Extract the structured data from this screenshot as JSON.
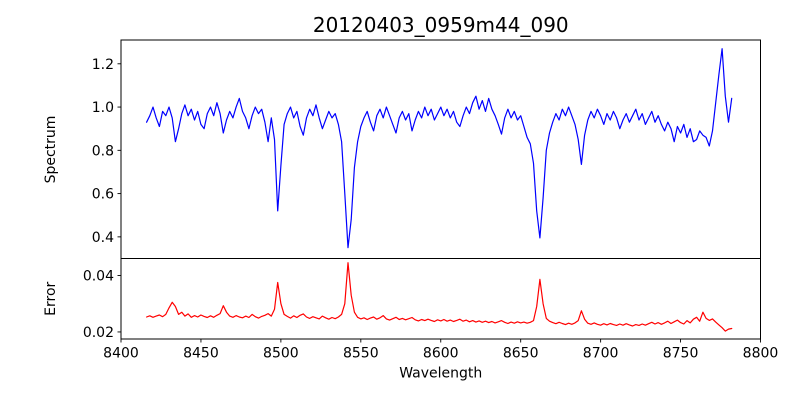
{
  "figure": {
    "background_color": "#ffffff",
    "axis_color": "#000000",
    "title": "20120403_0959m44_090"
  },
  "chart_data": {
    "type": "line",
    "title": "20120403_0959m44_090",
    "xlabel": "Wavelength",
    "xlim": [
      8400,
      8800
    ],
    "xticks": [
      8400,
      8450,
      8500,
      8550,
      8600,
      8650,
      8700,
      8750,
      8800
    ],
    "grid": false,
    "legend": "none",
    "layout": "two stacked panels sharing x axis, no vertical gap",
    "panels": [
      {
        "name": "spectrum",
        "ylabel": "Spectrum",
        "ylim": [
          0.3,
          1.31
        ],
        "yticks": [
          0.4,
          0.6,
          0.8,
          1.0,
          1.2
        ],
        "ytick_labels": [
          "0.4",
          "0.6",
          "0.8",
          "1.0",
          "1.2"
        ],
        "color": "#0000ff",
        "features": "continuum near 1.0 with noise; Ca II absorption lines at 8498 (0.52), 8542 (0.35), 8662 (0.40); weaker lines 8434, 8464, 8492, 8514, 8638, 8688 (0.74); emission spike to 1.27 near 8776",
        "x_grid": {
          "start": 8416,
          "step": 2,
          "count": 184
        },
        "y": [
          0.93,
          0.96,
          1.0,
          0.95,
          0.91,
          0.98,
          0.96,
          1.0,
          0.95,
          0.84,
          0.9,
          0.97,
          1.01,
          0.96,
          0.99,
          0.94,
          0.98,
          0.92,
          0.9,
          0.97,
          1.0,
          0.96,
          1.02,
          0.97,
          0.88,
          0.94,
          0.98,
          0.95,
          1.0,
          1.04,
          0.98,
          0.95,
          0.9,
          0.96,
          1.0,
          0.97,
          0.99,
          0.93,
          0.84,
          0.95,
          0.85,
          0.52,
          0.73,
          0.92,
          0.97,
          1.0,
          0.95,
          0.98,
          0.91,
          0.87,
          0.95,
          0.99,
          0.96,
          1.01,
          0.95,
          0.9,
          0.94,
          0.98,
          0.95,
          0.97,
          0.92,
          0.84,
          0.6,
          0.35,
          0.48,
          0.72,
          0.84,
          0.91,
          0.95,
          0.98,
          0.93,
          0.89,
          0.96,
          0.99,
          0.95,
          1.0,
          0.96,
          0.92,
          0.88,
          0.95,
          0.98,
          0.94,
          0.97,
          0.89,
          0.94,
          0.98,
          0.95,
          1.0,
          0.96,
          0.99,
          0.94,
          0.97,
          1.0,
          0.96,
          0.99,
          0.95,
          0.98,
          0.93,
          0.91,
          0.96,
          1.0,
          0.97,
          1.02,
          1.05,
          0.99,
          1.03,
          0.98,
          1.04,
          0.99,
          0.96,
          0.92,
          0.875,
          0.95,
          0.99,
          0.95,
          0.98,
          0.94,
          0.96,
          0.91,
          0.86,
          0.83,
          0.74,
          0.52,
          0.395,
          0.58,
          0.8,
          0.88,
          0.93,
          0.97,
          0.94,
          0.99,
          0.96,
          1.0,
          0.96,
          0.92,
          0.85,
          0.735,
          0.87,
          0.94,
          0.98,
          0.95,
          0.99,
          0.96,
          0.92,
          0.97,
          0.94,
          0.98,
          0.95,
          0.9,
          0.94,
          0.97,
          0.93,
          0.96,
          0.99,
          0.94,
          0.97,
          0.92,
          0.95,
          0.98,
          0.93,
          0.96,
          0.92,
          0.89,
          0.93,
          0.9,
          0.84,
          0.91,
          0.88,
          0.92,
          0.86,
          0.9,
          0.84,
          0.85,
          0.89,
          0.87,
          0.86,
          0.82,
          0.89,
          1.02,
          1.15,
          1.27,
          1.05,
          0.93,
          1.04
        ]
      },
      {
        "name": "error",
        "ylabel": "Error",
        "ylim": [
          0.0175,
          0.046
        ],
        "yticks": [
          0.02,
          0.04
        ],
        "ytick_labels": [
          "0.02",
          "0.04"
        ],
        "color": "#ff0000",
        "features": "baseline ~0.025 slowly declining to ~0.022; peaks at 8432 (0.030), 8464 (0.029), 8498 (0.037), 8542 (0.044), 8662 (0.039), 8688 (0.027); dip to ~0.020 at right end",
        "x_grid": {
          "start": 8416,
          "step": 2,
          "count": 184
        },
        "y": [
          0.0253,
          0.0257,
          0.0252,
          0.0256,
          0.026,
          0.0254,
          0.0262,
          0.0285,
          0.0305,
          0.029,
          0.0262,
          0.027,
          0.0256,
          0.0264,
          0.0252,
          0.0258,
          0.0253,
          0.026,
          0.0255,
          0.0251,
          0.0257,
          0.0252,
          0.0259,
          0.0265,
          0.0293,
          0.027,
          0.0256,
          0.0252,
          0.0258,
          0.0253,
          0.025,
          0.0256,
          0.0251,
          0.0262,
          0.0254,
          0.0249,
          0.0255,
          0.0259,
          0.0265,
          0.0256,
          0.028,
          0.0375,
          0.03,
          0.0262,
          0.0255,
          0.0249,
          0.0257,
          0.0251,
          0.0259,
          0.0264,
          0.0253,
          0.0248,
          0.0254,
          0.025,
          0.0246,
          0.0256,
          0.025,
          0.0245,
          0.0251,
          0.0247,
          0.0253,
          0.0262,
          0.03,
          0.0445,
          0.033,
          0.027,
          0.0252,
          0.0246,
          0.025,
          0.0244,
          0.0249,
          0.0253,
          0.0245,
          0.025,
          0.0258,
          0.0246,
          0.0242,
          0.0247,
          0.0252,
          0.0244,
          0.0248,
          0.0243,
          0.0247,
          0.0251,
          0.0243,
          0.0239,
          0.0244,
          0.024,
          0.0245,
          0.0241,
          0.0237,
          0.0243,
          0.0239,
          0.0244,
          0.0238,
          0.0242,
          0.0237,
          0.0241,
          0.0245,
          0.0238,
          0.0242,
          0.0236,
          0.024,
          0.0235,
          0.0239,
          0.0234,
          0.0238,
          0.0233,
          0.0237,
          0.0232,
          0.0236,
          0.024,
          0.0234,
          0.023,
          0.0235,
          0.0231,
          0.0236,
          0.0232,
          0.0235,
          0.0231,
          0.0234,
          0.024,
          0.029,
          0.0386,
          0.03,
          0.0248,
          0.0238,
          0.0233,
          0.0229,
          0.0234,
          0.023,
          0.0226,
          0.0231,
          0.0227,
          0.0232,
          0.024,
          0.0275,
          0.0245,
          0.0231,
          0.0227,
          0.0232,
          0.0227,
          0.0224,
          0.0229,
          0.0225,
          0.023,
          0.0226,
          0.0223,
          0.0228,
          0.0224,
          0.0229,
          0.0225,
          0.0221,
          0.0226,
          0.0223,
          0.0228,
          0.0224,
          0.0229,
          0.0234,
          0.0228,
          0.0233,
          0.0227,
          0.0232,
          0.0238,
          0.023,
          0.0236,
          0.0242,
          0.0233,
          0.0228,
          0.024,
          0.0232,
          0.0245,
          0.0252,
          0.0238,
          0.027,
          0.0248,
          0.0241,
          0.0246,
          0.0235,
          0.0225,
          0.0215,
          0.0203,
          0.021,
          0.0212
        ]
      }
    ]
  }
}
